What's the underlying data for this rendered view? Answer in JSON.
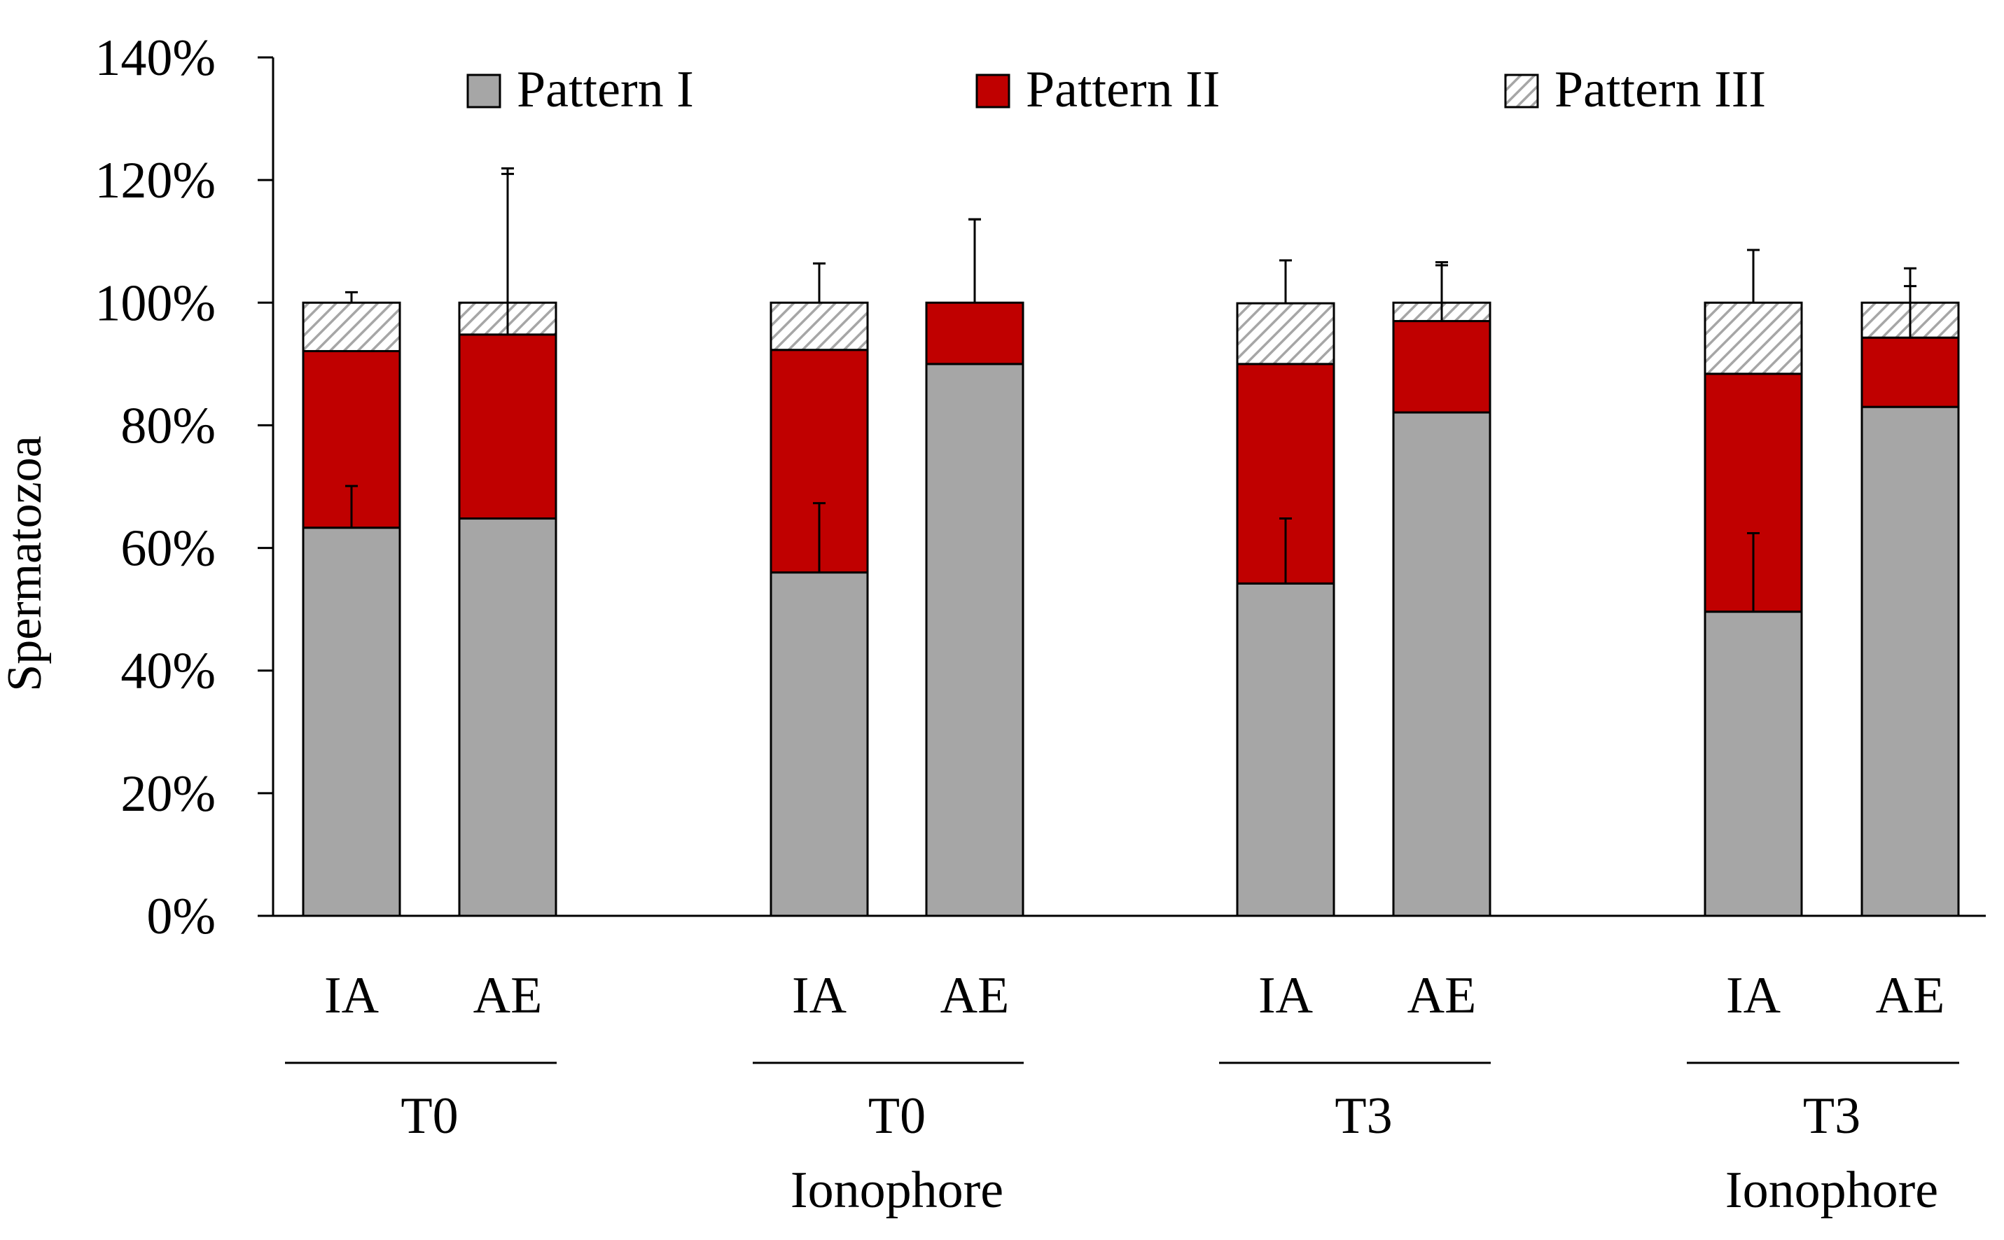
{
  "chart_data": {
    "type": "bar",
    "stacked": true,
    "ylabel": "Spermatozoa",
    "ylim": [
      0,
      140
    ],
    "yticks": [
      "0%",
      "20%",
      "40%",
      "60%",
      "80%",
      "100%",
      "120%",
      "140%"
    ],
    "grid": false,
    "legend_position": "top",
    "categories": [
      "IA",
      "AE",
      "IA",
      "AE",
      "IA",
      "AE",
      "IA",
      "AE"
    ],
    "groups": [
      {
        "label_lines": [
          "T0"
        ],
        "categories": [
          0,
          1
        ]
      },
      {
        "label_lines": [
          "T0",
          "Ionophore"
        ],
        "categories": [
          2,
          3
        ]
      },
      {
        "label_lines": [
          "T3"
        ],
        "categories": [
          4,
          5
        ]
      },
      {
        "label_lines": [
          "T3",
          "Ionophore"
        ],
        "categories": [
          6,
          7
        ]
      }
    ],
    "series": [
      {
        "name": "Pattern I",
        "color": "#a6a6a6",
        "fill": "solid",
        "values": [
          63.3,
          64.8,
          56.0,
          90.0,
          54.2,
          82.1,
          49.6,
          83.0
        ],
        "errors": [
          6.8,
          0,
          11.3,
          0,
          10.6,
          0,
          12.8,
          0
        ]
      },
      {
        "name": "Pattern II",
        "color": "#c00000",
        "fill": "solid",
        "values": [
          28.8,
          30.0,
          36.3,
          10.0,
          35.8,
          14.9,
          38.8,
          11.3
        ],
        "errors": [
          0,
          26.2,
          0,
          13.6,
          0,
          9.6,
          0,
          8.4
        ]
      },
      {
        "name": "Pattern III",
        "color": "#bfbfbf",
        "fill": "hatched",
        "values": [
          7.9,
          5.2,
          7.7,
          0.0,
          9.9,
          3.0,
          11.6,
          5.7
        ],
        "errors": [
          1.7,
          21.9,
          6.4,
          13.6,
          7.0,
          6.1,
          8.6,
          5.6
        ]
      }
    ]
  }
}
